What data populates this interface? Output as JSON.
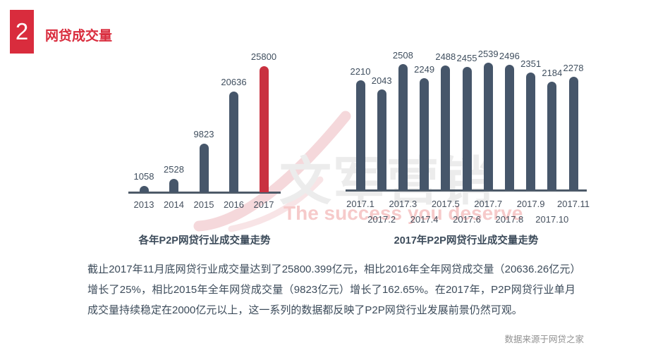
{
  "slide": {
    "section_number": "2",
    "title": "网贷成交量",
    "body_text": "截止2017年11月底网贷行业成交量达到了25800.399亿元，相比2016年全年网贷成交量（20636.26亿元）增长了25%，相比2015年全年网贷成交量（9823亿元）增长了162.65%。在2017年，P2P网贷行业单月成交量持续稳定在2000亿元以上，这一系列的数据都反映了P2P网贷行业发展前景仍然可观。",
    "source_note": "数据来源于网贷之家"
  },
  "watermark": {
    "logo_text": "文军营销",
    "tagline": "The success you deserve"
  },
  "colors": {
    "accent_red": "#d92c3d",
    "bar_dark": "#46566a",
    "bar_red": "#c93140",
    "axis": "#4d5a68",
    "label_dark": "#3f4e5e",
    "watermark_gray": "#ececec",
    "watermark_pink": "#f6caca",
    "swoosh_pink": "#f5d8db"
  },
  "chart_data": [
    {
      "type": "bar",
      "title": "各年P2P网贷行业成交量走势",
      "categories": [
        "2013",
        "2014",
        "2015",
        "2016",
        "2017"
      ],
      "values": [
        1058,
        2528,
        9823,
        20636,
        25800
      ],
      "unit": "亿元",
      "highlight_index": 4,
      "highlight_color": "#c93140",
      "bar_color": "#46566a",
      "ylim": [
        0,
        26000
      ],
      "grid": false,
      "legend": false,
      "bar_labels": true
    },
    {
      "type": "bar",
      "title": "2017年P2P网贷行业成交量走势",
      "categories": [
        "2017.1",
        "2017.2",
        "2017.3",
        "2017.4",
        "2017.5",
        "2017.6",
        "2017.7",
        "2017.8",
        "2017.9",
        "2017.10",
        "2017.11"
      ],
      "values": [
        2210,
        2043,
        2508,
        2249,
        2488,
        2455,
        2539,
        2496,
        2351,
        2184,
        2278
      ],
      "unit": "亿元",
      "highlight_index": null,
      "bar_color": "#46566a",
      "ylim": [
        1900,
        2600
      ],
      "grid": false,
      "legend": false,
      "bar_labels": true,
      "axis_label_rows": 2
    }
  ]
}
